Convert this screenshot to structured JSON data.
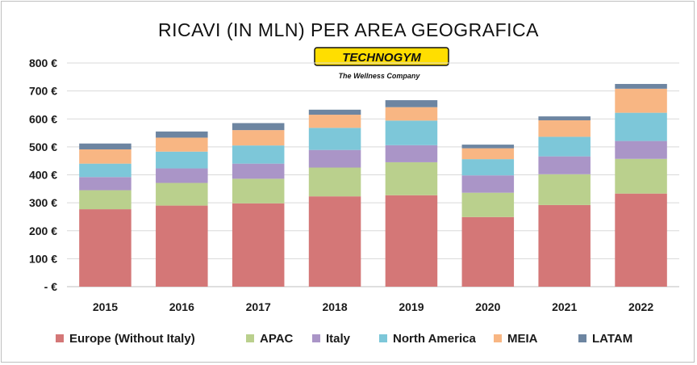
{
  "logo": {
    "wordmark": "TECHNOGYM",
    "tagline": "The Wellness Company",
    "color": "#ffde00"
  },
  "chart_data": {
    "type": "bar",
    "stacked": true,
    "title": "RICAVI (IN MLN) PER AREA GEOGRAFICA",
    "xlabel": "",
    "ylabel": "",
    "categories": [
      "2015",
      "2016",
      "2017",
      "2018",
      "2019",
      "2020",
      "2021",
      "2022"
    ],
    "y_ticks": [
      "- €",
      "100 €",
      "200 €",
      "300 €",
      "400 €",
      "500 €",
      "600 €",
      "700 €",
      "800 €"
    ],
    "ylim": [
      0,
      800
    ],
    "grid": true,
    "legend_position": "bottom",
    "series": [
      {
        "name": "Europe (Without Italy)",
        "color": "#d47777",
        "values": [
          277,
          290,
          298,
          323,
          327,
          249,
          292,
          333
        ]
      },
      {
        "name": "APAC",
        "color": "#bad08d",
        "values": [
          68,
          81,
          88,
          103,
          118,
          87,
          110,
          124
        ]
      },
      {
        "name": "Italy",
        "color": "#aa95c7",
        "values": [
          47,
          52,
          54,
          63,
          61,
          62,
          64,
          64
        ]
      },
      {
        "name": "North America",
        "color": "#7dc7d9",
        "values": [
          48,
          60,
          65,
          79,
          88,
          58,
          70,
          101
        ]
      },
      {
        "name": "MEIA",
        "color": "#f8b683",
        "values": [
          51,
          50,
          55,
          47,
          48,
          39,
          59,
          86
        ]
      },
      {
        "name": "LATAM",
        "color": "#6d85a1",
        "values": [
          21,
          22,
          25,
          18,
          25,
          13,
          14,
          17
        ]
      }
    ]
  }
}
